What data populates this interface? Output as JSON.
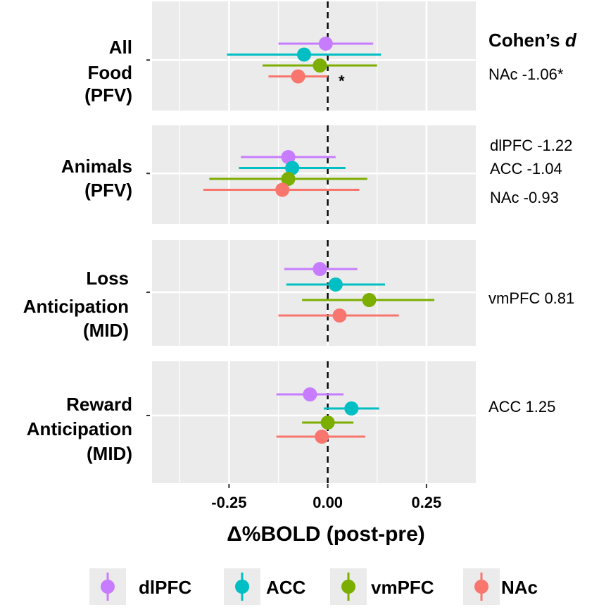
{
  "chart_data": {
    "type": "scatter",
    "subtype": "forest-plot",
    "xlabel": "Δ%BOLD (post-pre)",
    "xlim": [
      -0.445,
      0.375
    ],
    "x_ticks": [
      -0.25,
      0.0,
      0.25
    ],
    "x_tick_labels": [
      "-0.25",
      "0.00",
      "0.25"
    ],
    "reference_line": 0,
    "series": [
      {
        "name": "dlPFC",
        "color": "#C77CFF"
      },
      {
        "name": "ACC",
        "color": "#00BFC4"
      },
      {
        "name": "vmPFC",
        "color": "#7CAE00"
      },
      {
        "name": "NAc",
        "color": "#F8766D"
      }
    ],
    "panels": [
      {
        "label_lines": [
          "All",
          "Food",
          "(PFV)"
        ],
        "points": [
          {
            "series": "dlPFC",
            "estimate": -0.005,
            "low": -0.125,
            "high": 0.115
          },
          {
            "series": "ACC",
            "estimate": -0.06,
            "low": -0.255,
            "high": 0.135
          },
          {
            "series": "vmPFC",
            "estimate": -0.02,
            "low": -0.165,
            "high": 0.125
          },
          {
            "series": "NAc",
            "estimate": -0.075,
            "low": -0.15,
            "high": 0.0
          }
        ],
        "significant_marker": "*",
        "cohens_d": [
          "NAc -1.06*"
        ]
      },
      {
        "label_lines": [
          "Animals",
          "(PFV)"
        ],
        "points": [
          {
            "series": "dlPFC",
            "estimate": -0.1,
            "low": -0.22,
            "high": 0.02
          },
          {
            "series": "ACC",
            "estimate": -0.09,
            "low": -0.225,
            "high": 0.045
          },
          {
            "series": "vmPFC",
            "estimate": -0.1,
            "low": -0.3,
            "high": 0.1
          },
          {
            "series": "NAc",
            "estimate": -0.115,
            "low": -0.315,
            "high": 0.08
          }
        ],
        "cohens_d": [
          "dlPFC -1.22",
          "ACC -1.04",
          "NAc -0.93"
        ]
      },
      {
        "label_lines": [
          "Loss",
          "Anticipation",
          "(MID)"
        ],
        "points": [
          {
            "series": "dlPFC",
            "estimate": -0.02,
            "low": -0.11,
            "high": 0.075
          },
          {
            "series": "ACC",
            "estimate": 0.02,
            "low": -0.105,
            "high": 0.145
          },
          {
            "series": "vmPFC",
            "estimate": 0.105,
            "low": -0.065,
            "high": 0.27
          },
          {
            "series": "NAc",
            "estimate": 0.03,
            "low": -0.125,
            "high": 0.18
          }
        ],
        "cohens_d": [
          "vmPFC 0.81"
        ]
      },
      {
        "label_lines": [
          "Reward",
          "Anticipation",
          "(MID)"
        ],
        "points": [
          {
            "series": "dlPFC",
            "estimate": -0.045,
            "low": -0.13,
            "high": 0.04
          },
          {
            "series": "ACC",
            "estimate": 0.06,
            "low": -0.01,
            "high": 0.13
          },
          {
            "series": "vmPFC",
            "estimate": 0.0,
            "low": -0.065,
            "high": 0.065
          },
          {
            "series": "NAc",
            "estimate": -0.015,
            "low": -0.13,
            "high": 0.095
          }
        ],
        "cohens_d": [
          "ACC 1.25"
        ]
      }
    ],
    "cohens_title": "Cohen’s",
    "cohens_title_var": "d",
    "legend": [
      "dlPFC",
      "ACC",
      "vmPFC",
      "NAc"
    ]
  }
}
